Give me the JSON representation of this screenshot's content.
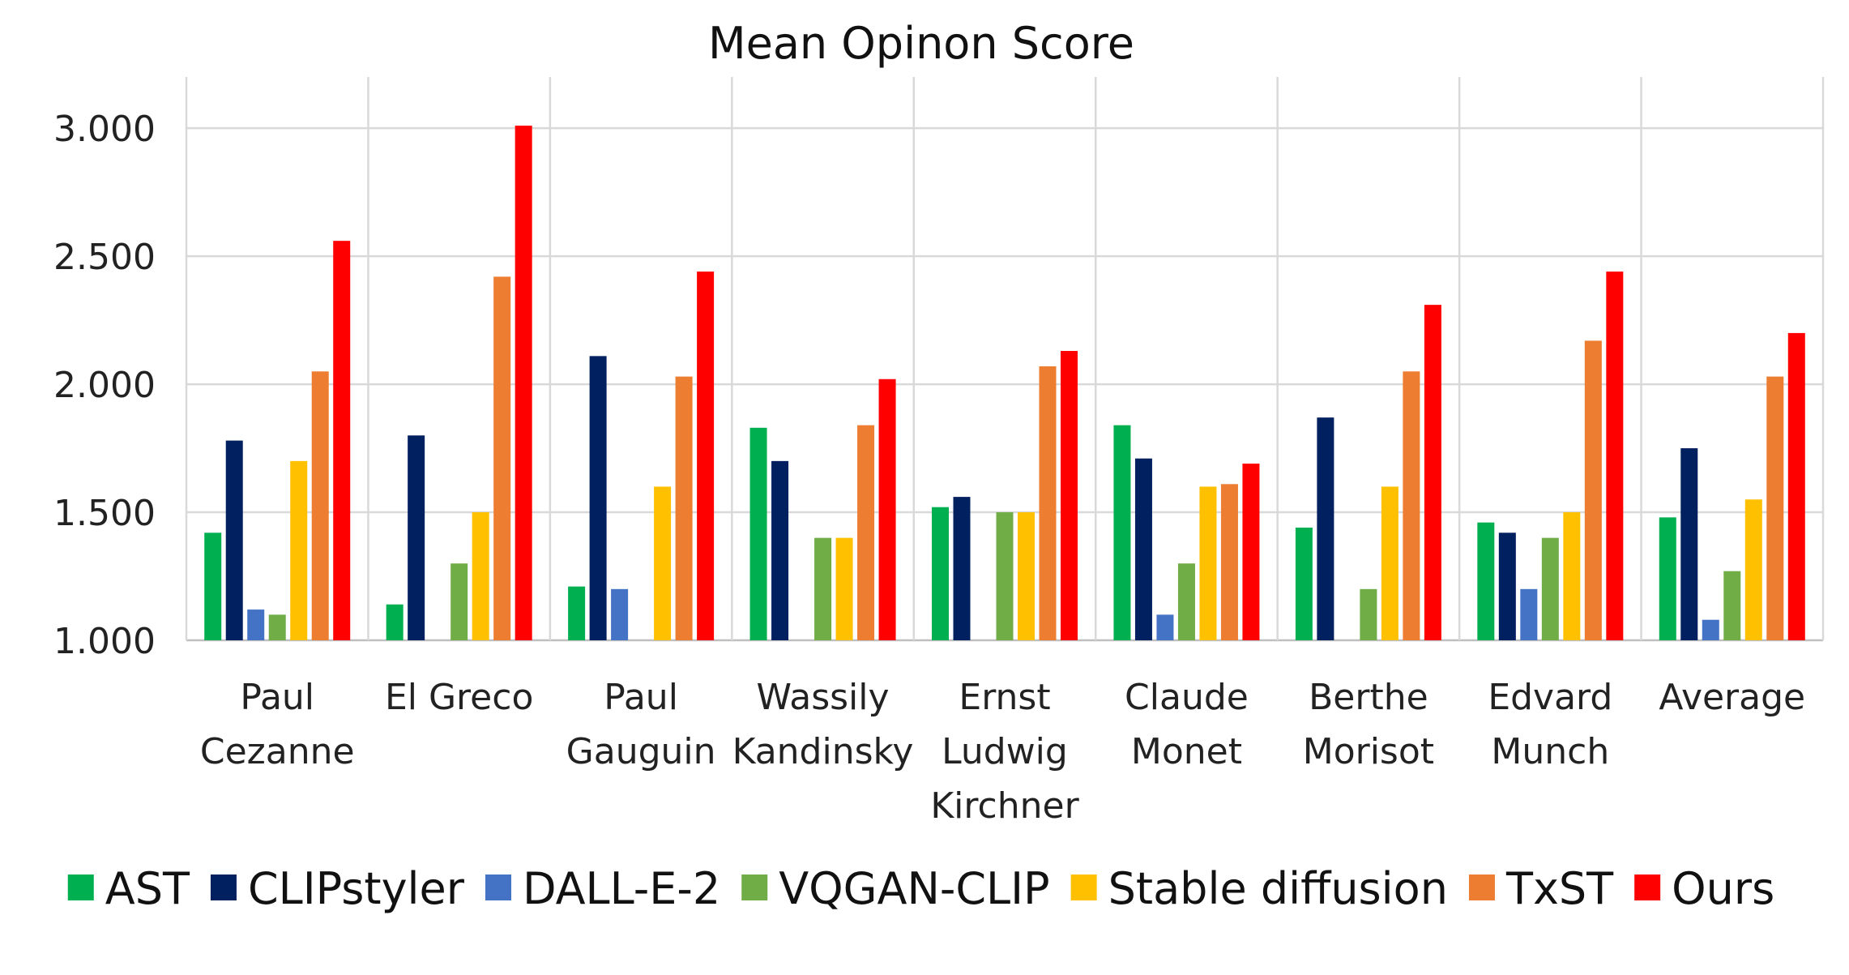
{
  "chart_data": {
    "type": "bar",
    "title": "Mean Opinon Score",
    "xlabel": "",
    "ylabel": "",
    "ylim": [
      1.0,
      3.2
    ],
    "yticks": [
      "1.000",
      "1.500",
      "2.000",
      "2.500",
      "3.000"
    ],
    "ytick_values": [
      1.0,
      1.5,
      2.0,
      2.5,
      3.0
    ],
    "grid": true,
    "legend_position": "bottom",
    "categories": [
      [
        "Paul",
        "Cezanne"
      ],
      [
        "El Greco"
      ],
      [
        "Paul",
        "Gauguin"
      ],
      [
        "Wassily",
        "Kandinsky"
      ],
      [
        "Ernst",
        "Ludwig",
        "Kirchner"
      ],
      [
        "Claude",
        "Monet"
      ],
      [
        "Berthe",
        "Morisot"
      ],
      [
        "Edvard",
        "Munch"
      ],
      [
        "Average"
      ]
    ],
    "series": [
      {
        "name": "AST",
        "color": "#00b050",
        "values": [
          1.42,
          1.14,
          1.21,
          1.83,
          1.52,
          1.84,
          1.44,
          1.46,
          1.48
        ]
      },
      {
        "name": "CLIPstyler",
        "color": "#002060",
        "values": [
          1.78,
          1.8,
          2.11,
          1.7,
          1.56,
          1.71,
          1.87,
          1.42,
          1.75
        ]
      },
      {
        "name": "DALL-E-2",
        "color": "#4472c4",
        "values": [
          1.12,
          null,
          1.2,
          null,
          null,
          1.1,
          null,
          1.2,
          1.08
        ]
      },
      {
        "name": "VQGAN-CLIP",
        "color": "#70ad47",
        "values": [
          1.1,
          1.3,
          null,
          1.4,
          1.5,
          1.3,
          1.2,
          1.4,
          1.27
        ]
      },
      {
        "name": "Stable diffusion",
        "color": "#ffc000",
        "values": [
          1.7,
          1.5,
          1.6,
          1.4,
          1.5,
          1.6,
          1.6,
          1.5,
          1.55
        ]
      },
      {
        "name": "TxST",
        "color": "#ed7d31",
        "values": [
          2.05,
          2.42,
          2.03,
          1.84,
          2.07,
          1.61,
          2.05,
          2.17,
          2.03
        ]
      },
      {
        "name": "Ours",
        "color": "#ff0000",
        "values": [
          2.56,
          3.01,
          2.44,
          2.02,
          2.13,
          1.69,
          2.31,
          2.44,
          2.2
        ]
      }
    ]
  },
  "colors": {
    "grid": "#d9d9d9",
    "axis": "#bfbfbf",
    "text": "#222222"
  }
}
